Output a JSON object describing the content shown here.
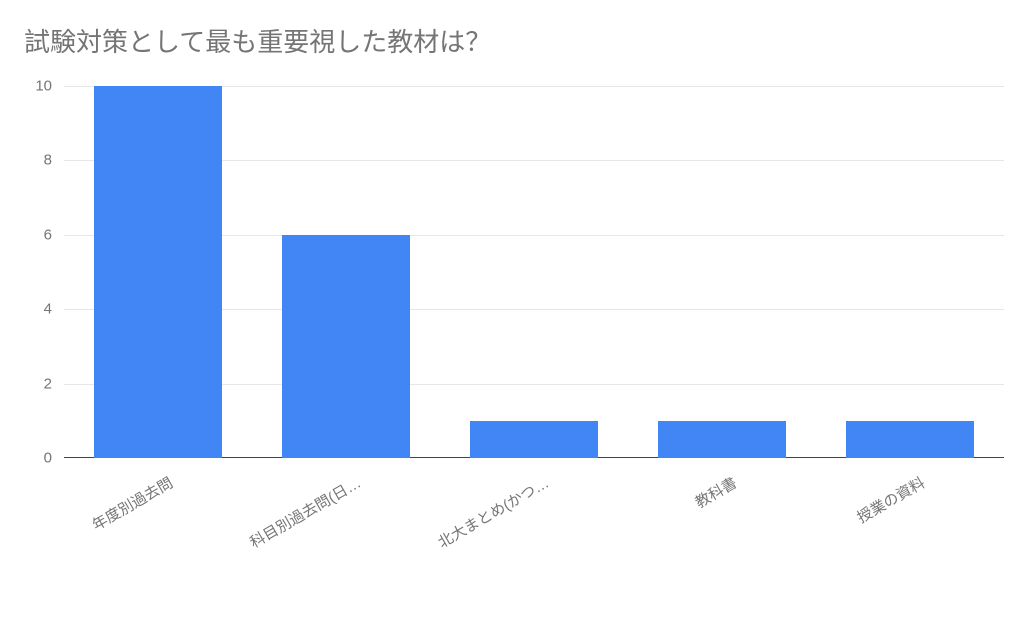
{
  "chart": {
    "type": "bar",
    "title": "試験対策として最も重要視した教材は？",
    "title_color": "#757575",
    "title_fontsize": 26,
    "categories": [
      "年度別過去問",
      "科目別過去問(日…",
      "北大まとめ(かつ…",
      "教科書",
      "授業の資料"
    ],
    "values": [
      10,
      6,
      1,
      1,
      1
    ],
    "bar_color": "#4285f4",
    "ylim": [
      0,
      10
    ],
    "ytick_step": 2,
    "yticks": [
      0,
      2,
      4,
      6,
      8,
      10
    ],
    "grid_color": "#e7e7e7",
    "baseline_color": "#444444",
    "axis_label_color": "#757575",
    "axis_label_fontsize": 15,
    "background_color": "#ffffff",
    "bar_width_ratio": 0.68,
    "xlabel_rotation_deg": -30
  }
}
